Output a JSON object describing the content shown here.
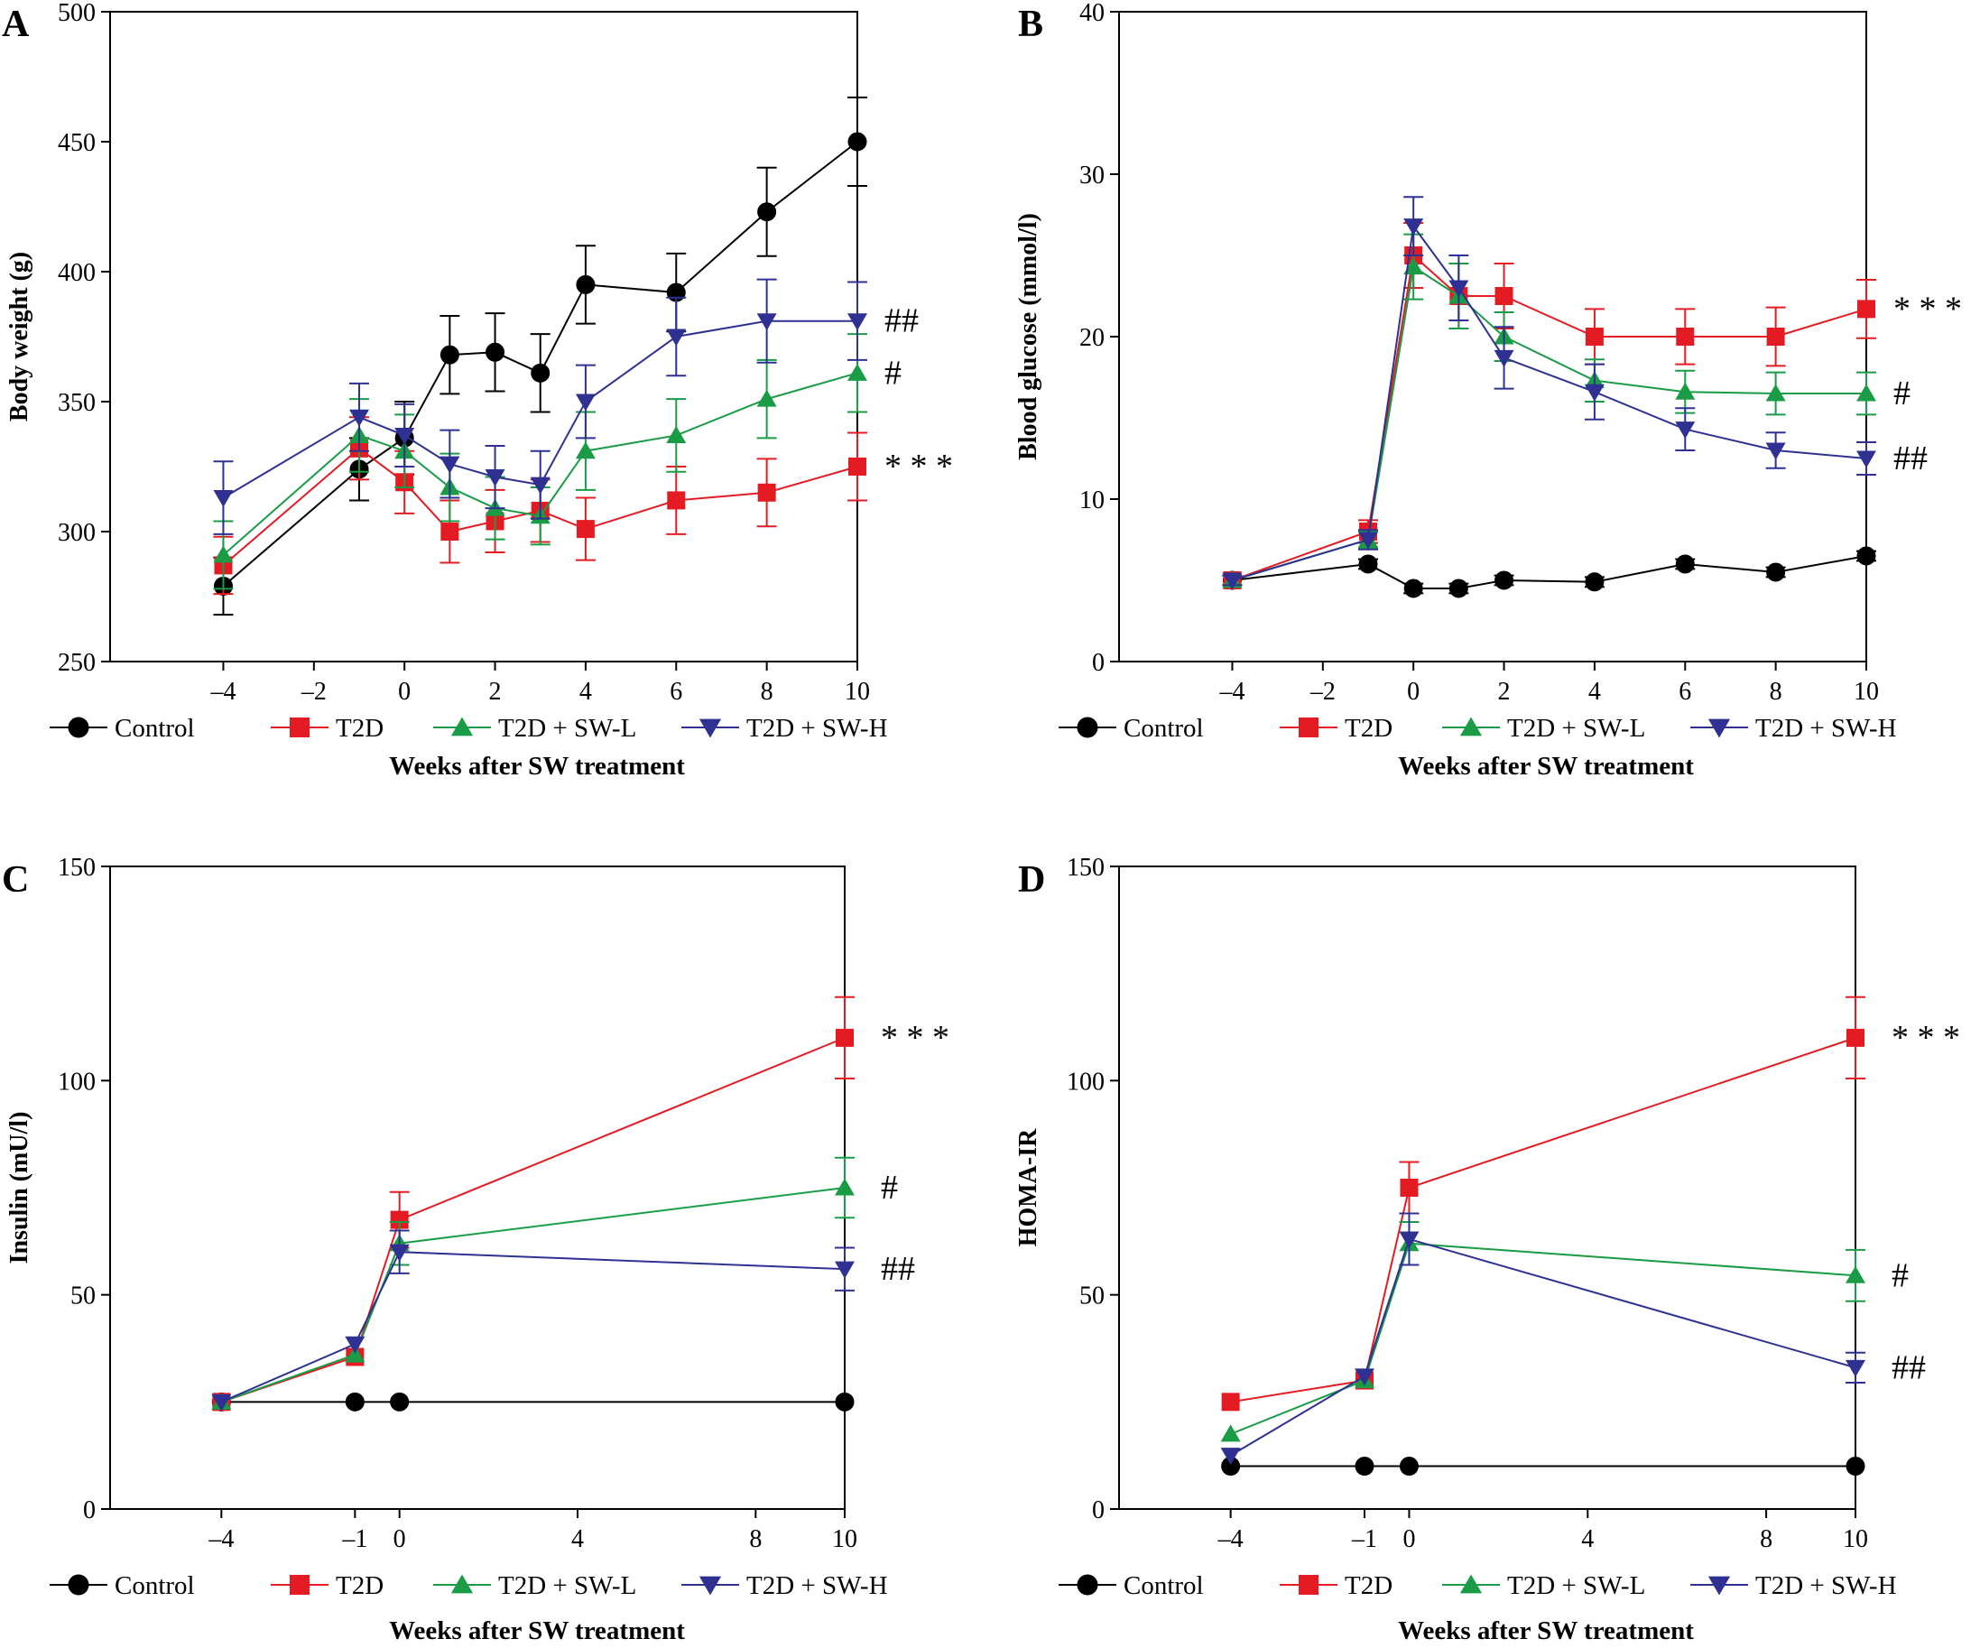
{
  "figure": {
    "legend_labels": [
      "Control",
      "T2D",
      "T2D + SW-L",
      "T2D + SW-H"
    ],
    "colors": {
      "Control": "#000000",
      "T2D": "#e41b23",
      "T2D + SW-L": "#1a9b46",
      "T2D + SW-H": "#2e3192"
    },
    "markers": {
      "Control": "circle",
      "T2D": "square",
      "T2D + SW-L": "triangle-up",
      "T2D + SW-H": "triangle-down"
    }
  },
  "chart_data": [
    {
      "panel": "A",
      "type": "line",
      "xlabel": "Weeks after SW treatment",
      "ylabel": "Body weight (g)",
      "xlim": [
        -6.5,
        10
      ],
      "ylim": [
        250,
        500
      ],
      "xticks": [
        -4,
        -2,
        0,
        2,
        4,
        6,
        8,
        10
      ],
      "xtick_labels": [
        "–4",
        "–2",
        "0",
        "2",
        "4",
        "6",
        "8",
        "10"
      ],
      "yticks": [
        250,
        300,
        350,
        400,
        450,
        500
      ],
      "error_bars": true,
      "series": [
        {
          "name": "Control",
          "x": [
            -4,
            -1,
            0,
            1,
            2,
            3,
            4,
            6,
            8,
            10
          ],
          "y": [
            279,
            324,
            336,
            368,
            369,
            361,
            395,
            392,
            423,
            450
          ],
          "err": [
            11,
            12,
            14,
            15,
            15,
            15,
            15,
            15,
            17,
            17
          ]
        },
        {
          "name": "T2D",
          "x": [
            -4,
            -1,
            0,
            1,
            2,
            3,
            4,
            6,
            8,
            10
          ],
          "y": [
            287,
            332,
            319,
            300,
            304,
            308,
            301,
            312,
            315,
            325
          ],
          "err": [
            11,
            12,
            12,
            12,
            12,
            12,
            12,
            13,
            13,
            13
          ]
        },
        {
          "name": "T2D + SW-L",
          "x": [
            -4,
            -1,
            0,
            1,
            2,
            3,
            4,
            6,
            8,
            10
          ],
          "y": [
            291,
            337,
            331,
            317,
            309,
            306,
            331,
            337,
            351,
            361
          ],
          "err": [
            13,
            14,
            14,
            13,
            12,
            11,
            15,
            14,
            15,
            15
          ]
        },
        {
          "name": "T2D + SW-H",
          "x": [
            -4,
            -1,
            0,
            1,
            2,
            3,
            4,
            6,
            8,
            10
          ],
          "y": [
            313,
            344,
            337,
            326,
            321,
            318,
            350,
            375,
            381,
            381
          ],
          "err": [
            14,
            13,
            12,
            13,
            12,
            13,
            14,
            15,
            16,
            15
          ]
        }
      ],
      "annotations": [
        {
          "text": "##",
          "series": "T2D + SW-H"
        },
        {
          "text": "#",
          "series": "T2D + SW-L"
        },
        {
          "text": "* * *",
          "series": "T2D"
        }
      ]
    },
    {
      "panel": "B",
      "type": "line",
      "xlabel": "Weeks after SW treatment",
      "ylabel": "Blood glucose (mmol/l)",
      "xlim": [
        -6.5,
        10
      ],
      "ylim": [
        0,
        40
      ],
      "xticks": [
        -4,
        -2,
        0,
        2,
        4,
        6,
        8,
        10
      ],
      "xtick_labels": [
        "–4",
        "–2",
        "0",
        "2",
        "4",
        "6",
        "8",
        "10"
      ],
      "yticks": [
        0,
        10,
        20,
        30,
        40
      ],
      "error_bars": true,
      "series": [
        {
          "name": "Control",
          "x": [
            -4,
            -1,
            0,
            1,
            2,
            4,
            6,
            8,
            10
          ],
          "y": [
            5,
            6,
            4.5,
            4.5,
            5,
            4.9,
            6,
            5.5,
            6.5
          ],
          "err": [
            0.3,
            0.3,
            0.3,
            0.3,
            0.3,
            0.3,
            0.3,
            0.3,
            0.3
          ]
        },
        {
          "name": "T2D",
          "x": [
            -4,
            -1,
            0,
            1,
            2,
            4,
            6,
            8,
            10
          ],
          "y": [
            5,
            8,
            25,
            22.5,
            22.5,
            20,
            20,
            20,
            21.7
          ],
          "err": [
            0.3,
            0.7,
            2,
            2,
            2,
            1.7,
            1.7,
            1.8,
            1.8
          ]
        },
        {
          "name": "T2D + SW-L",
          "x": [
            -4,
            -1,
            0,
            1,
            2,
            4,
            6,
            8,
            10
          ],
          "y": [
            5,
            7.5,
            24.3,
            22.5,
            20,
            17.3,
            16.6,
            16.5,
            16.5
          ],
          "err": [
            0.3,
            0.5,
            2,
            2,
            1.5,
            1.3,
            1.3,
            1.3,
            1.3
          ]
        },
        {
          "name": "T2D + SW-H",
          "x": [
            -4,
            -1,
            0,
            1,
            2,
            4,
            6,
            8,
            10
          ],
          "y": [
            5,
            7.5,
            26.8,
            23,
            18.7,
            16.6,
            14.3,
            13,
            12.5
          ],
          "err": [
            0.3,
            0.6,
            1.8,
            2,
            1.9,
            1.7,
            1.3,
            1.1,
            1
          ]
        }
      ],
      "annotations": [
        {
          "text": "* * *",
          "series": "T2D"
        },
        {
          "text": "#",
          "series": "T2D + SW-L"
        },
        {
          "text": "##",
          "series": "T2D + SW-H"
        }
      ]
    },
    {
      "panel": "C",
      "type": "line",
      "xlabel": "Weeks after SW treatment",
      "ylabel": "Insulin (mU/l)",
      "xlim": [
        -6.5,
        10
      ],
      "ylim": [
        0,
        150
      ],
      "xticks": [
        -4,
        -1,
        0,
        4,
        8,
        10
      ],
      "xtick_labels": [
        "–4",
        "–1",
        "0",
        "4",
        "8",
        "10"
      ],
      "yticks": [
        0,
        50,
        100,
        150
      ],
      "error_bars": true,
      "series": [
        {
          "name": "Control",
          "x": [
            -4,
            -1,
            0,
            10
          ],
          "y": [
            25,
            25,
            25,
            25
          ],
          "err": [
            0,
            0,
            0,
            0
          ]
        },
        {
          "name": "T2D",
          "x": [
            -4,
            -1,
            0,
            10
          ],
          "y": [
            25,
            35.5,
            67.5,
            110
          ],
          "err": [
            0,
            0,
            6.5,
            9.5
          ]
        },
        {
          "name": "T2D + SW-L",
          "x": [
            -4,
            -1,
            0,
            10
          ],
          "y": [
            25,
            36,
            62,
            75
          ],
          "err": [
            0,
            0,
            5,
            7
          ]
        },
        {
          "name": "T2D + SW-H",
          "x": [
            -4,
            -1,
            0,
            10
          ],
          "y": [
            25,
            38.5,
            60,
            56
          ],
          "err": [
            0,
            0,
            5,
            5
          ]
        }
      ],
      "annotations": [
        {
          "text": "* * *",
          "series": "T2D"
        },
        {
          "text": "#",
          "series": "T2D + SW-L"
        },
        {
          "text": "##",
          "series": "T2D + SW-H"
        }
      ]
    },
    {
      "panel": "D",
      "type": "line",
      "xlabel": "Weeks after SW treatment",
      "ylabel": "HOMA-IR",
      "xlim": [
        -6.5,
        10
      ],
      "ylim": [
        0,
        150
      ],
      "xticks": [
        -4,
        -1,
        0,
        4,
        8,
        10
      ],
      "xtick_labels": [
        "–4",
        "–1",
        "0",
        "4",
        "8",
        "10"
      ],
      "yticks": [
        0,
        50,
        100,
        150
      ],
      "error_bars": true,
      "series": [
        {
          "name": "Control",
          "x": [
            -4,
            -1,
            0,
            10
          ],
          "y": [
            10,
            10,
            10,
            10
          ],
          "err": [
            0,
            0,
            0,
            0
          ]
        },
        {
          "name": "T2D",
          "x": [
            -4,
            -1,
            0,
            10
          ],
          "y": [
            25,
            30,
            75,
            110
          ],
          "err": [
            0,
            0,
            6,
            9.5
          ]
        },
        {
          "name": "T2D + SW-L",
          "x": [
            -4,
            -1,
            0,
            10
          ],
          "y": [
            17.5,
            30,
            62,
            54.5
          ],
          "err": [
            0,
            0,
            5,
            6
          ]
        },
        {
          "name": "T2D + SW-H",
          "x": [
            -4,
            -1,
            0,
            10
          ],
          "y": [
            12.5,
            31,
            63,
            33
          ],
          "err": [
            0,
            0,
            6,
            3.5
          ]
        }
      ],
      "annotations": [
        {
          "text": "* * *",
          "series": "T2D"
        },
        {
          "text": "#",
          "series": "T2D + SW-L"
        },
        {
          "text": "##",
          "series": "T2D + SW-H"
        }
      ]
    }
  ]
}
